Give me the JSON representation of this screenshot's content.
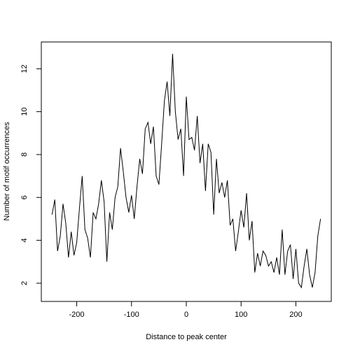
{
  "chart_data": {
    "type": "line",
    "x_label": "Distance to peak center",
    "y_label": "Number of motif occurrences",
    "x": [
      -245,
      -240,
      -235,
      -230,
      -225,
      -220,
      -215,
      -210,
      -205,
      -200,
      -195,
      -190,
      -185,
      -180,
      -175,
      -170,
      -165,
      -160,
      -155,
      -150,
      -145,
      -140,
      -135,
      -130,
      -125,
      -120,
      -115,
      -110,
      -105,
      -100,
      -95,
      -90,
      -85,
      -80,
      -75,
      -70,
      -65,
      -60,
      -55,
      -50,
      -45,
      -40,
      -35,
      -30,
      -25,
      -20,
      -15,
      -10,
      -5,
      0,
      5,
      10,
      15,
      20,
      25,
      30,
      35,
      40,
      45,
      50,
      55,
      60,
      65,
      70,
      75,
      80,
      85,
      90,
      95,
      100,
      105,
      110,
      115,
      120,
      125,
      130,
      135,
      140,
      145,
      150,
      155,
      160,
      165,
      170,
      175,
      180,
      185,
      190,
      195,
      200,
      205,
      210,
      215,
      220,
      225,
      230,
      235,
      240,
      245
    ],
    "series": [
      {
        "color": "#000000",
        "values": [
          5.2,
          5.9,
          3.5,
          4.2,
          5.7,
          4.8,
          3.2,
          4.4,
          3.3,
          3.9,
          5.5,
          7.0,
          4.5,
          4.1,
          3.2,
          5.3,
          5.0,
          5.7,
          6.8,
          5.8,
          3.0,
          5.3,
          4.5,
          6.0,
          6.5,
          8.3,
          7.2,
          6.0,
          5.3,
          6.1,
          5.0,
          6.5,
          7.8,
          7.1,
          9.2,
          9.5,
          8.5,
          9.3,
          7.0,
          6.6,
          8.5,
          10.5,
          11.4,
          9.8,
          12.7,
          10.0,
          8.7,
          9.2,
          7.0,
          10.7,
          8.7,
          8.8,
          8.2,
          9.8,
          7.6,
          8.5,
          6.3,
          8.5,
          8.1,
          5.2,
          7.8,
          6.2,
          6.7,
          6.0,
          6.8,
          4.7,
          5.0,
          3.5,
          4.4,
          5.4,
          4.6,
          6.2,
          4.0,
          4.9,
          2.5,
          3.4,
          2.8,
          3.5,
          3.3,
          2.8,
          3.0,
          2.5,
          3.2,
          2.4,
          4.5,
          2.4,
          3.5,
          3.8,
          2.2,
          3.6,
          2.0,
          1.8,
          2.8,
          3.6,
          2.4,
          1.8,
          2.5,
          4.2,
          5.0
        ]
      }
    ],
    "xlim": [
      -264.6,
      264.6
    ],
    "ylim": [
      1.15,
      13.25
    ],
    "xticks": [
      -200,
      -100,
      0,
      100,
      200
    ],
    "yticks": [
      2,
      4,
      6,
      8,
      10,
      12
    ]
  }
}
